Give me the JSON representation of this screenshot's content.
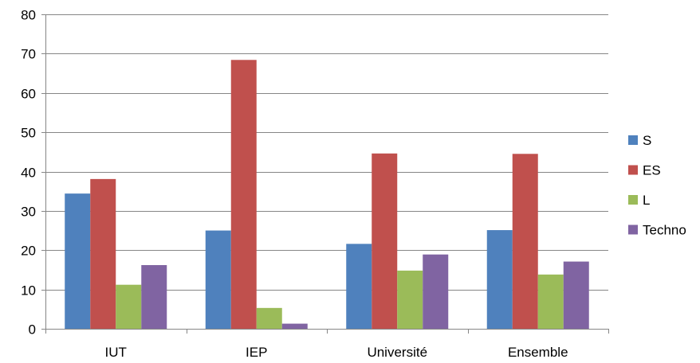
{
  "chart_data": {
    "type": "bar",
    "categories": [
      "IUT",
      "IEP",
      "Université",
      "Ensemble"
    ],
    "series": [
      {
        "name": "S",
        "color": "#4F81BD",
        "values": [
          34.4,
          25.0,
          21.6,
          25.1
        ]
      },
      {
        "name": "ES",
        "color": "#C0504D",
        "values": [
          38.1,
          68.4,
          44.6,
          44.5
        ]
      },
      {
        "name": "L",
        "color": "#9BBB59",
        "values": [
          11.2,
          5.3,
          14.8,
          13.8
        ]
      },
      {
        "name": "Techno",
        "color": "#8064A2",
        "values": [
          16.2,
          1.3,
          18.9,
          17.1
        ]
      }
    ],
    "ylim": [
      0,
      80
    ],
    "yticks": [
      0,
      10,
      20,
      30,
      40,
      50,
      60,
      70,
      80
    ],
    "grid": true,
    "legend_position": "right"
  }
}
